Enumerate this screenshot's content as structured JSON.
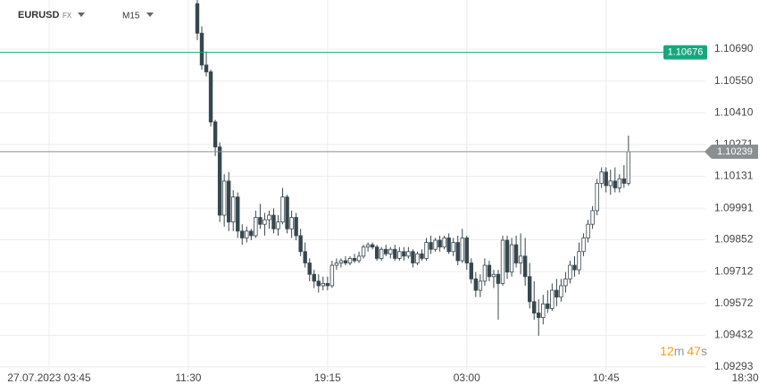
{
  "header": {
    "symbol": "EURUSD",
    "market": "FX",
    "timeframe": "M15"
  },
  "countdown": [
    "12",
    "m",
    "47",
    "s"
  ],
  "chart_data": {
    "type": "candlestick",
    "up_color": "#ffffff",
    "down_color": "#37474f",
    "edge_color": "#37474f",
    "grid": true,
    "ylim": [
      1.09277,
      1.10906
    ],
    "yticks": [
      {
        "value": 1.1069,
        "label": "1.10690"
      },
      {
        "value": 1.1055,
        "label": "1.10550"
      },
      {
        "value": 1.1041,
        "label": "1.10410"
      },
      1.10271,
      1.10131,
      1.09991,
      1.09852,
      1.09712,
      1.09572,
      1.09432,
      1.09293
    ],
    "xlim": [
      -10.93,
      157.06
    ],
    "xticks": [
      {
        "value": 0,
        "label": "27.07.2023  03:45"
      },
      {
        "value": 31,
        "label": "11:30"
      },
      {
        "value": 62,
        "label": "19:15"
      },
      {
        "value": 93,
        "label": "03:00"
      },
      {
        "value": 124,
        "label": "10:45"
      },
      {
        "value": 155,
        "label": "18:30"
      }
    ],
    "price_lines": [
      {
        "value": 1.10676,
        "color": "#17a77f"
      },
      {
        "value": 1.10239,
        "color": "#8a8f92"
      }
    ],
    "x": [
      33,
      34,
      35,
      36,
      37,
      38,
      39,
      40,
      41,
      42,
      43,
      44,
      45,
      46,
      47,
      48,
      49,
      50,
      51,
      52,
      53,
      54,
      55,
      56,
      57,
      58,
      59,
      60,
      61,
      62,
      63,
      64,
      65,
      66,
      67,
      68,
      69,
      70,
      71,
      72,
      73,
      74,
      75,
      76,
      77,
      78,
      79,
      80,
      81,
      82,
      83,
      84,
      85,
      86,
      87,
      88,
      89,
      90,
      91,
      92,
      93,
      94,
      95,
      96,
      97,
      98,
      99,
      100,
      101,
      102,
      103,
      104,
      105,
      106,
      107,
      108,
      109,
      110,
      111,
      112,
      113,
      114,
      115,
      116,
      117,
      118,
      119,
      120,
      121,
      122,
      123,
      124,
      125,
      126,
      127,
      128,
      129
    ],
    "open": [
      1.1089,
      1.1076,
      1.1062,
      1.1059,
      1.1037,
      1.1026,
      1.0996,
      1.1011,
      1.0993,
      1.1004,
      1.0989,
      1.0986,
      1.0989,
      1.0987,
      1.0995,
      1.0992,
      1.0994,
      1.0996,
      1.099,
      1.0993,
      1.1004,
      1.099,
      1.0995,
      1.0987,
      1.098,
      1.0975,
      1.097,
      1.0967,
      1.0965,
      1.0966,
      1.0965,
      1.0974,
      1.0975,
      1.0976,
      1.0975,
      1.0977,
      1.0976,
      1.0978,
      1.0982,
      1.0983,
      1.0982,
      1.0977,
      1.0981,
      1.0979,
      1.0981,
      1.0977,
      1.098,
      1.0978,
      1.098,
      1.0975,
      1.0979,
      1.0977,
      1.0984,
      1.0981,
      1.0985,
      1.0982,
      1.0986,
      1.098,
      1.0984,
      1.0976,
      1.0986,
      1.0975,
      1.0968,
      1.0963,
      1.0967,
      1.0974,
      1.0969,
      1.097,
      1.0966,
      1.0985,
      1.0971,
      1.0983,
      1.0975,
      1.0978,
      1.0969,
      1.0958,
      1.0953,
      1.0951,
      1.0957,
      1.0955,
      1.0963,
      1.096,
      1.0965,
      1.0968,
      1.0974,
      1.0972,
      1.098,
      1.0986,
      1.0992,
      1.0998,
      1.101,
      1.1015,
      1.1009,
      1.1011,
      1.1008,
      1.1012,
      1.101
    ],
    "high": [
      1.1091,
      1.1079,
      1.1068,
      1.106,
      1.1038,
      1.1028,
      1.1014,
      1.1015,
      1.1007,
      1.1006,
      1.0992,
      1.0991,
      1.099,
      1.0998,
      1.1001,
      1.0997,
      1.0998,
      1.0999,
      1.0996,
      1.1008,
      1.1005,
      1.0998,
      1.0997,
      1.099,
      1.0984,
      1.0977,
      1.0972,
      1.097,
      1.0969,
      1.0969,
      1.0976,
      1.0977,
      1.0977,
      1.0978,
      1.0978,
      1.0979,
      1.098,
      1.0983,
      1.0984,
      1.0984,
      1.0983,
      1.0982,
      1.0983,
      1.0982,
      1.0983,
      1.0982,
      1.0982,
      1.0982,
      1.0981,
      1.098,
      1.0981,
      1.0986,
      1.0987,
      1.0986,
      1.0987,
      1.0987,
      1.0988,
      1.0986,
      1.0987,
      1.099,
      1.0987,
      1.0977,
      1.0971,
      1.097,
      1.0977,
      1.0976,
      1.0972,
      1.0972,
      1.0987,
      1.0987,
      1.0986,
      1.0987,
      1.0988,
      1.0986,
      1.0975,
      1.0967,
      1.0959,
      1.0961,
      1.0963,
      1.0966,
      1.0968,
      1.0968,
      1.0971,
      1.0976,
      1.0978,
      1.0984,
      1.0988,
      1.0994,
      1.1,
      1.1012,
      1.1017,
      1.1017,
      1.1016,
      1.1017,
      1.1014,
      1.1018,
      1.1031
    ],
    "low": [
      1.1073,
      1.106,
      1.1057,
      1.1035,
      1.1022,
      1.0993,
      1.0991,
      1.0989,
      1.0989,
      1.0986,
      1.0983,
      1.0984,
      1.0985,
      1.0986,
      1.099,
      1.0987,
      1.099,
      1.0988,
      1.0987,
      1.0992,
      1.0988,
      1.0986,
      1.0985,
      1.0978,
      1.0973,
      1.0967,
      1.0964,
      1.0962,
      1.0963,
      1.0963,
      1.0964,
      1.0972,
      1.0973,
      1.0974,
      1.0974,
      1.0975,
      1.0975,
      1.0977,
      1.098,
      1.0981,
      1.0976,
      1.0976,
      1.0978,
      1.0977,
      1.0976,
      1.0976,
      1.0976,
      1.0977,
      1.0973,
      1.0974,
      1.0976,
      1.0976,
      1.0979,
      1.098,
      1.098,
      1.0981,
      1.0979,
      1.0978,
      1.0974,
      1.0975,
      1.0972,
      1.0966,
      1.096,
      1.096,
      1.0965,
      1.0967,
      1.0964,
      1.095,
      1.0965,
      1.0968,
      1.0969,
      1.0973,
      1.097,
      1.0965,
      1.0955,
      1.095,
      1.0943,
      1.0948,
      1.0953,
      1.0954,
      1.0956,
      1.0958,
      1.0962,
      1.0966,
      1.0969,
      1.097,
      1.0978,
      1.0984,
      1.099,
      1.0996,
      1.1008,
      1.1006,
      1.1005,
      1.1006,
      1.1006,
      1.1008,
      1.1009
    ],
    "close": [
      1.1076,
      1.1062,
      1.1059,
      1.1037,
      1.1026,
      1.0996,
      1.1011,
      1.0993,
      1.1004,
      1.0989,
      1.0986,
      1.0989,
      1.0987,
      1.0995,
      1.0992,
      1.0994,
      1.0996,
      1.099,
      1.0993,
      1.1004,
      1.099,
      1.0995,
      1.0987,
      1.098,
      1.0975,
      1.097,
      1.0967,
      1.0965,
      1.0966,
      1.0965,
      1.0974,
      1.0975,
      1.0976,
      1.0975,
      1.0977,
      1.0976,
      1.0978,
      1.0982,
      1.0983,
      1.0982,
      1.0977,
      1.0981,
      1.0979,
      1.0981,
      1.0977,
      1.098,
      1.0978,
      1.098,
      1.0975,
      1.0979,
      1.0977,
      1.0984,
      1.0981,
      1.0985,
      1.0982,
      1.0986,
      1.098,
      1.0984,
      1.0976,
      1.0986,
      1.0975,
      1.0968,
      1.0963,
      1.0967,
      1.0974,
      1.0969,
      1.097,
      1.0966,
      1.0985,
      1.0971,
      1.0983,
      1.0975,
      1.0978,
      1.0969,
      1.0958,
      1.0953,
      1.0951,
      1.0957,
      1.0955,
      1.0963,
      1.096,
      1.0965,
      1.0968,
      1.0974,
      1.0972,
      1.098,
      1.0986,
      1.0992,
      1.0998,
      1.101,
      1.1015,
      1.1009,
      1.1011,
      1.1008,
      1.1012,
      1.101,
      1.10239
    ]
  }
}
